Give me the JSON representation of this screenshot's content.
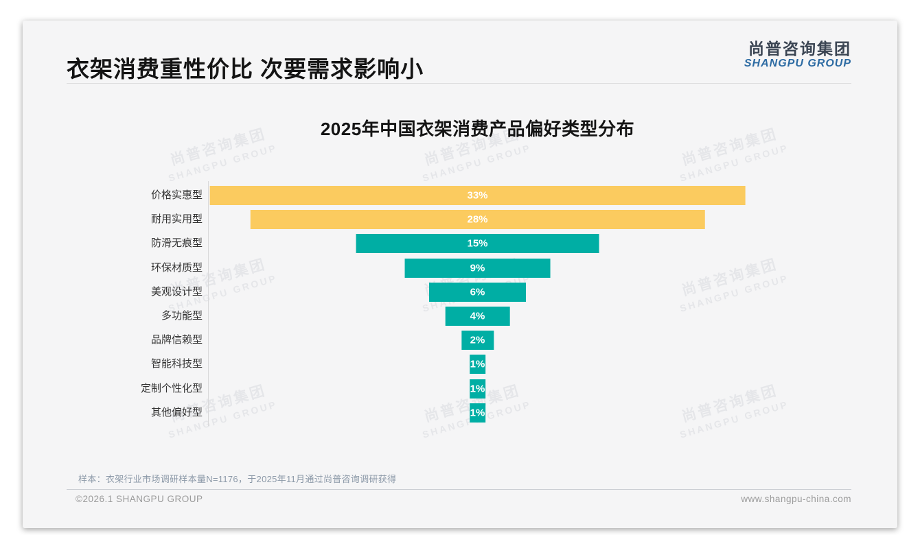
{
  "page": {
    "header": {
      "title": "衣架消费重性价比 次要需求影响小"
    },
    "logo": {
      "cn": "尚普咨询集团",
      "en": "SHANGPU GROUP"
    },
    "watermark": {
      "cn": "尚普咨询集团",
      "en": "SHANGPU GROUP"
    },
    "footnote": "样本：衣架行业市场调研样本量N=1176，于2025年11月通过尚普咨询调研获得",
    "footer": {
      "left": "©2026.1 SHANGPU GROUP",
      "right": "www.shangpu-china.com"
    }
  },
  "chart_data": {
    "type": "bar",
    "variant": "horizontal-centered-funnel",
    "title": "2025年中国衣架消费产品偏好类型分布",
    "categories": [
      "价格实惠型",
      "耐用实用型",
      "防滑无痕型",
      "环保材质型",
      "美观设计型",
      "多功能型",
      "品牌信赖型",
      "智能科技型",
      "定制个性化型",
      "其他偏好型"
    ],
    "values": [
      33,
      28,
      15,
      9,
      6,
      4,
      2,
      1,
      1,
      1
    ],
    "labels": [
      "33%",
      "28%",
      "15%",
      "9%",
      "6%",
      "4%",
      "2%",
      "1%",
      "1%",
      "1%"
    ],
    "unit": "%",
    "highlight_count": 2,
    "colors": {
      "highlight": "#FBCB5F",
      "normal": "#00AEA4",
      "value_text": "#FFFFFF"
    },
    "legend": false,
    "grid": false,
    "xlim": [
      0,
      33.2
    ]
  }
}
